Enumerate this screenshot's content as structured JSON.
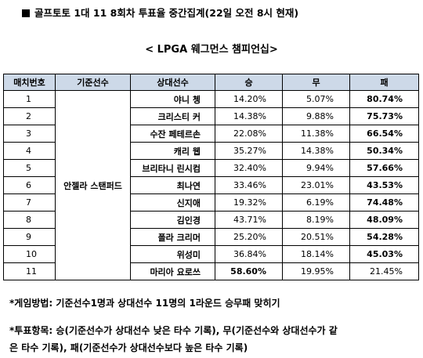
{
  "title": "골프토토 1대 11 8회차 투표율 중간집계(22일 오전 8시 현재)",
  "subtitle": "< LPGA 웨그먼스 챔피언십>",
  "table": {
    "headers": [
      "매치번호",
      "기준선수",
      "상대선수",
      "승",
      "무",
      "패"
    ],
    "base_player": "안젤라 스탠퍼드",
    "rows": [
      {
        "no": "1",
        "opponent": "야니 쳉",
        "win": "14.20%",
        "draw": "5.07%",
        "loss": "80.74%"
      },
      {
        "no": "2",
        "opponent": "크리스티 커",
        "win": "14.38%",
        "draw": "9.88%",
        "loss": "75.73%"
      },
      {
        "no": "3",
        "opponent": "수잔 페테르손",
        "win": "22.08%",
        "draw": "11.38%",
        "loss": "66.54%"
      },
      {
        "no": "4",
        "opponent": "캐리 웹",
        "win": "35.27%",
        "draw": "14.38%",
        "loss": "50.34%"
      },
      {
        "no": "5",
        "opponent": "브리타니 린시컴",
        "win": "32.40%",
        "draw": "9.94%",
        "loss": "57.66%"
      },
      {
        "no": "6",
        "opponent": "최나연",
        "win": "33.46%",
        "draw": "23.01%",
        "loss": "43.53%"
      },
      {
        "no": "7",
        "opponent": "신지애",
        "win": "19.32%",
        "draw": "6.19%",
        "loss": "74.48%"
      },
      {
        "no": "8",
        "opponent": "김인경",
        "win": "43.71%",
        "draw": "8.19%",
        "loss": "48.09%"
      },
      {
        "no": "9",
        "opponent": "폴라 크리머",
        "win": "25.20%",
        "draw": "20.51%",
        "loss": "54.28%"
      },
      {
        "no": "10",
        "opponent": "위성미",
        "win": "36.84%",
        "draw": "18.14%",
        "loss": "45.03%"
      },
      {
        "no": "11",
        "opponent": "마리아 요로쓰",
        "win": "58.60%",
        "draw": "19.95%",
        "loss": "21.45%"
      }
    ]
  },
  "notes": {
    "method": "*게임방법: 기준선수1명과 상대선수 11명의 1라운드 승무패 맞히기",
    "items_line1": "*투표항목: 승(기준선수가 상대선수 낮은 타수 기록), 무(기준선수와 상대선수가 같",
    "items_line2": "은 타수 기록), 패(기준선수가 상대선수보다 높은 타수 기록)"
  }
}
